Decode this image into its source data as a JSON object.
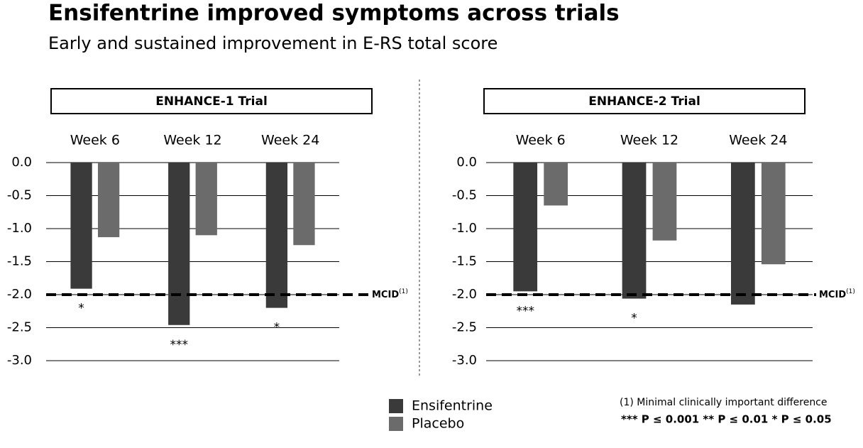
{
  "title": "Ensifentrine improved symptoms across trials",
  "subtitle": "Early and sustained improvement in E-RS total score",
  "footnotes": [
    "(1) Minimal clinically important difference",
    "***  P ≤ 0.001 ** P ≤ 0.01 * P ≤ 0.05"
  ],
  "chart_data": [
    {
      "type": "bar",
      "title": "ENHANCE-1 Trial",
      "categories": [
        "Week 6",
        "Week 12",
        "Week 24"
      ],
      "series": [
        {
          "name": "Ensifentrine",
          "color": "#3a3a3a",
          "values": [
            -1.91,
            -2.46,
            -2.2
          ],
          "annotations": [
            "*",
            "***",
            "*"
          ]
        },
        {
          "name": "Placebo",
          "color": "#6b6b6b",
          "values": [
            -1.13,
            -1.1,
            -1.25
          ]
        }
      ],
      "ylim": [
        0,
        -3
      ],
      "yticks": [
        {
          "value": 0,
          "label": "0.0"
        },
        {
          "value": -0.5,
          "label": "-0.5"
        },
        {
          "value": -1,
          "label": "-1.0"
        },
        {
          "value": -1.5,
          "label": "-1.5"
        },
        {
          "value": -2,
          "label": "-2.0"
        },
        {
          "value": -2.5,
          "label": "-2.5"
        },
        {
          "value": -3,
          "label": "-3.0"
        }
      ],
      "grid": true,
      "reference_line": {
        "value": -2,
        "label": "MCID",
        "superscript": "(1)"
      }
    },
    {
      "type": "bar",
      "title": "ENHANCE-2 Trial",
      "categories": [
        "Week 6",
        "Week 12",
        "Week 24"
      ],
      "series": [
        {
          "name": "Ensifentrine",
          "color": "#3a3a3a",
          "values": [
            -1.95,
            -2.06,
            -2.15
          ],
          "annotations": [
            "***",
            "*",
            null
          ]
        },
        {
          "name": "Placebo",
          "color": "#6b6b6b",
          "values": [
            -0.65,
            -1.18,
            -1.54
          ]
        }
      ],
      "ylim": [
        0,
        -3
      ],
      "yticks": [
        {
          "value": 0,
          "label": "0.0"
        },
        {
          "value": -0.5,
          "label": "-0.5"
        },
        {
          "value": -1,
          "label": "-1.0"
        },
        {
          "value": -1.5,
          "label": "-1.5"
        },
        {
          "value": -2,
          "label": "-2.0"
        },
        {
          "value": -2.5,
          "label": "-2.5"
        },
        {
          "value": -3,
          "label": "-3.0"
        }
      ],
      "grid": true,
      "reference_line": {
        "value": -2,
        "label": "MCID",
        "superscript": "(1)"
      }
    }
  ]
}
